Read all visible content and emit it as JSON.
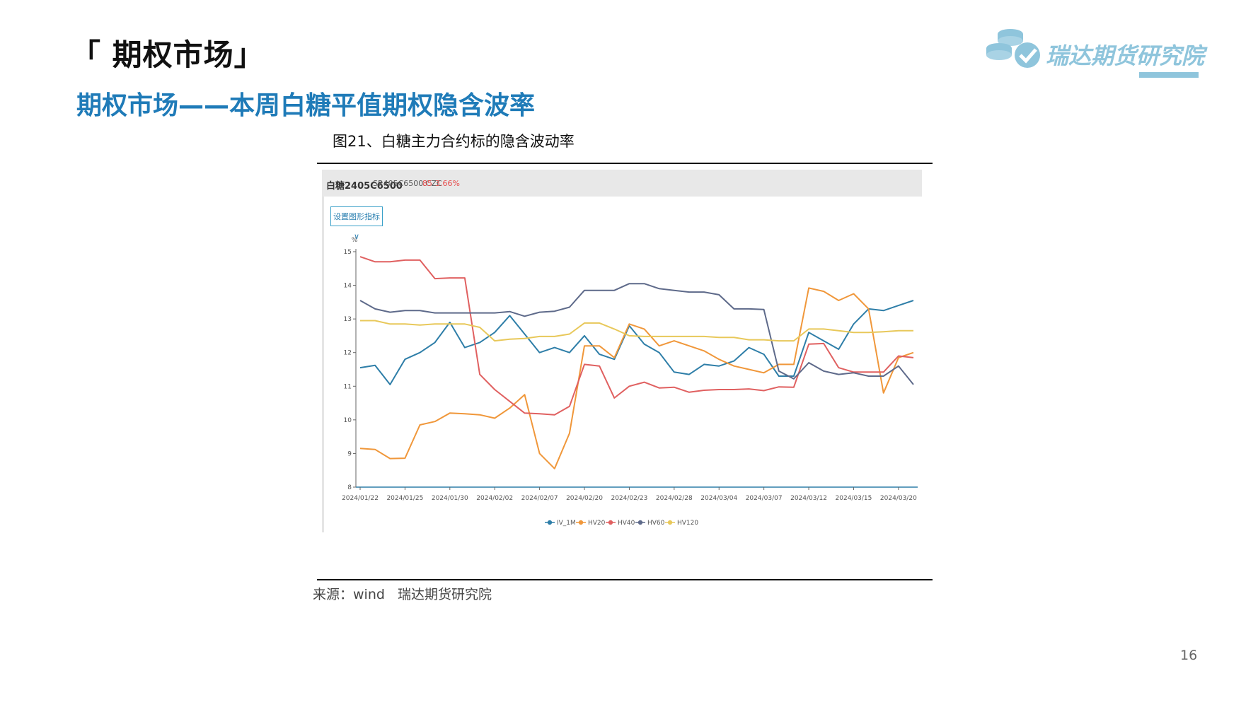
{
  "section_title": "「 期权市场」",
  "subtitle": "期权市场——本周白糖平值期权隐含波率",
  "logo_text": "瑞达期货研究院",
  "figure_caption": "图21、白糖主力合约标的隐含波动率",
  "source": "来源：wind   瑞达期货研究院",
  "page_number": "16",
  "chart_header": {
    "name": "白糖2405C6500",
    "code": "SR405C6500.CZC",
    "price": "85",
    "pct": "3.66%"
  },
  "setting_button": "设置图形指标 ∨",
  "colors": {
    "title_blue": "#1f7bb8",
    "logo": "#8fc5dc",
    "IV_1M": "#2e7ea8",
    "HV20": "#f0973a",
    "HV40": "#e06060",
    "HV60": "#5e6a8a",
    "HV120": "#e8c85a"
  },
  "chart_data": {
    "type": "line",
    "title": "",
    "xlabel": "",
    "ylabel": "%",
    "ylim": [
      8,
      15
    ],
    "yticks": [
      8,
      9,
      10,
      11,
      12,
      13,
      14,
      15
    ],
    "grid": false,
    "legend_position": "bottom-center",
    "x_tick_labels": [
      "2024/01/22",
      "2024/01/25",
      "2024/01/30",
      "2024/02/02",
      "2024/02/07",
      "2024/02/20",
      "2024/02/23",
      "2024/02/28",
      "2024/03/04",
      "2024/03/07",
      "2024/03/12",
      "2024/03/15",
      "2024/03/20"
    ],
    "x_tick_index": [
      0,
      3,
      6,
      9,
      12,
      15,
      18,
      21,
      24,
      27,
      30,
      33,
      36
    ],
    "series": [
      {
        "name": "IV_1M",
        "values": [
          11.55,
          11.62,
          11.05,
          11.8,
          12.0,
          12.3,
          12.9,
          12.15,
          12.3,
          12.6,
          13.1,
          12.55,
          12.0,
          12.15,
          12.0,
          12.5,
          11.95,
          11.8,
          12.8,
          12.25,
          12.0,
          11.42,
          11.35,
          11.65,
          11.6,
          11.75,
          12.15,
          11.95,
          11.3,
          11.3,
          12.6,
          12.35,
          12.1,
          12.85,
          13.3,
          13.25,
          13.4,
          13.55
        ]
      },
      {
        "name": "HV20",
        "values": [
          9.15,
          9.12,
          8.85,
          8.86,
          9.85,
          9.95,
          10.2,
          10.18,
          10.15,
          10.05,
          10.35,
          10.75,
          9.0,
          8.55,
          9.6,
          12.2,
          12.2,
          11.85,
          12.85,
          12.7,
          12.2,
          12.35,
          12.2,
          12.05,
          11.8,
          11.6,
          11.5,
          11.4,
          11.65,
          11.65,
          13.92,
          13.82,
          13.55,
          13.75,
          13.3,
          10.8,
          11.85,
          12.0
        ]
      },
      {
        "name": "HV40",
        "values": [
          14.85,
          14.7,
          14.7,
          14.75,
          14.75,
          14.2,
          14.22,
          14.22,
          11.35,
          10.9,
          10.55,
          10.2,
          10.18,
          10.15,
          10.4,
          11.65,
          11.6,
          10.65,
          11.0,
          11.12,
          10.95,
          10.97,
          10.82,
          10.88,
          10.9,
          10.9,
          10.92,
          10.87,
          10.98,
          10.97,
          12.25,
          12.27,
          11.55,
          11.42,
          11.42,
          11.42,
          11.9,
          11.85
        ]
      },
      {
        "name": "HV60",
        "values": [
          13.55,
          13.3,
          13.2,
          13.25,
          13.25,
          13.18,
          13.18,
          13.18,
          13.18,
          13.18,
          13.22,
          13.08,
          13.2,
          13.23,
          13.35,
          13.85,
          13.85,
          13.85,
          14.05,
          14.05,
          13.9,
          13.85,
          13.8,
          13.8,
          13.72,
          13.3,
          13.3,
          13.28,
          11.45,
          11.22,
          11.7,
          11.45,
          11.35,
          11.4,
          11.3,
          11.3,
          11.6,
          11.05
        ]
      },
      {
        "name": "HV120",
        "values": [
          12.95,
          12.95,
          12.85,
          12.85,
          12.82,
          12.85,
          12.85,
          12.85,
          12.75,
          12.35,
          12.4,
          12.42,
          12.48,
          12.48,
          12.55,
          12.88,
          12.88,
          12.7,
          12.5,
          12.48,
          12.48,
          12.48,
          12.48,
          12.48,
          12.45,
          12.45,
          12.38,
          12.38,
          12.35,
          12.35,
          12.7,
          12.7,
          12.65,
          12.6,
          12.6,
          12.62,
          12.65,
          12.65
        ]
      }
    ]
  }
}
